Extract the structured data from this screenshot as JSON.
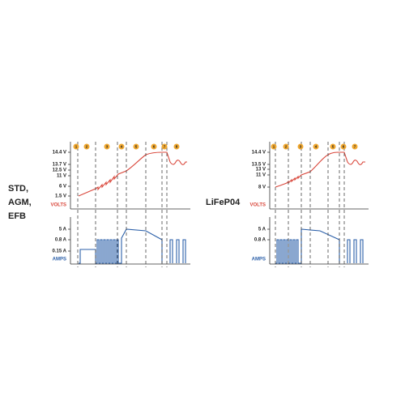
{
  "left": {
    "label": [
      "STD,",
      "AGM,",
      "EFB"
    ],
    "volt_ticks": [
      "14.4 V",
      "13.7 V",
      "12.5 V",
      "11 V",
      "6 V",
      "1.5 V"
    ],
    "volts_label": "VOLTS",
    "amp_ticks": [
      "5 A",
      "0.8 A",
      "0.15 A"
    ],
    "amps_label": "AMPS",
    "steps": [
      "1",
      "2",
      "3",
      "4",
      "5",
      "6",
      "7",
      "8"
    ]
  },
  "right": {
    "label": [
      "LiFeP04"
    ],
    "volt_ticks": [
      "14.4 V",
      "13.5 V",
      "13 V",
      "11 V",
      "8 V"
    ],
    "volts_label": "VOLTS",
    "amp_ticks": [
      "5 A",
      "0.8 A"
    ],
    "amps_label": "AMPS",
    "steps": [
      "1",
      "2",
      "3",
      "4",
      "5",
      "6",
      "7"
    ]
  }
}
